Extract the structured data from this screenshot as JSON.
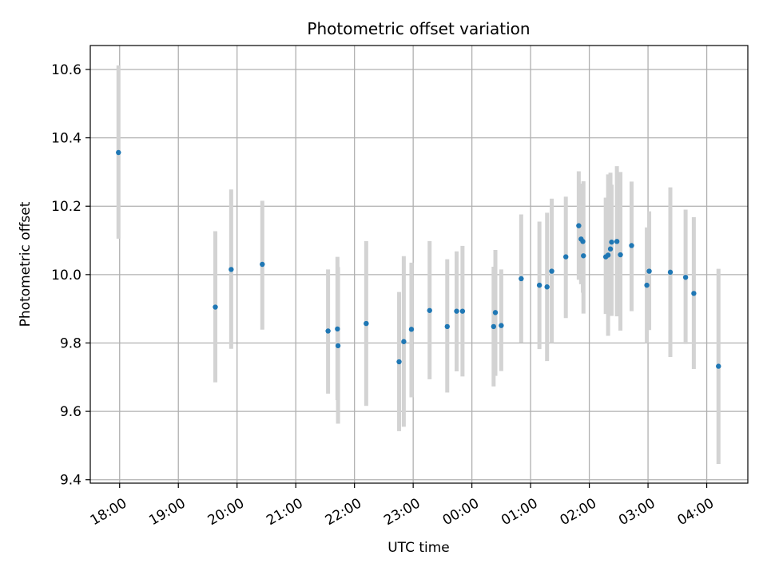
{
  "chart_data": {
    "type": "scatter",
    "title": "Photometric offset variation",
    "xlabel": "UTC time",
    "ylabel": "Photometric offset",
    "x_unit": "hours since 18:00 UTC",
    "xlim": [
      -0.5,
      10.7
    ],
    "ylim": [
      9.39,
      10.67
    ],
    "grid": true,
    "x_ticks": [
      {
        "value": 0,
        "label": "18:00"
      },
      {
        "value": 1,
        "label": "19:00"
      },
      {
        "value": 2,
        "label": "20:00"
      },
      {
        "value": 3,
        "label": "21:00"
      },
      {
        "value": 4,
        "label": "22:00"
      },
      {
        "value": 5,
        "label": "23:00"
      },
      {
        "value": 6,
        "label": "00:00"
      },
      {
        "value": 7,
        "label": "01:00"
      },
      {
        "value": 8,
        "label": "02:00"
      },
      {
        "value": 9,
        "label": "03:00"
      },
      {
        "value": 10,
        "label": "04:00"
      }
    ],
    "y_ticks": [
      {
        "value": 9.4,
        "label": "9.4"
      },
      {
        "value": 9.6,
        "label": "9.6"
      },
      {
        "value": 9.8,
        "label": "9.8"
      },
      {
        "value": 10.0,
        "label": "10.0"
      },
      {
        "value": 10.2,
        "label": "10.2"
      },
      {
        "value": 10.4,
        "label": "10.4"
      },
      {
        "value": 10.6,
        "label": "10.6"
      }
    ],
    "point_color": "#1f77b4",
    "errorbar_color": "#d3d3d3",
    "points": [
      {
        "x": -0.02,
        "y": 10.357,
        "lo": 10.105,
        "hi": 10.612
      },
      {
        "x": 1.63,
        "y": 9.905,
        "lo": 9.685,
        "hi": 10.127
      },
      {
        "x": 1.9,
        "y": 10.015,
        "lo": 9.783,
        "hi": 10.249
      },
      {
        "x": 2.43,
        "y": 10.03,
        "lo": 9.839,
        "hi": 10.216
      },
      {
        "x": 3.55,
        "y": 9.835,
        "lo": 9.652,
        "hi": 10.015
      },
      {
        "x": 3.71,
        "y": 9.841,
        "lo": 9.633,
        "hi": 10.052
      },
      {
        "x": 3.72,
        "y": 9.792,
        "lo": 9.564,
        "hi": 10.022
      },
      {
        "x": 4.2,
        "y": 9.857,
        "lo": 9.616,
        "hi": 10.098
      },
      {
        "x": 4.76,
        "y": 9.745,
        "lo": 9.542,
        "hi": 9.949
      },
      {
        "x": 4.84,
        "y": 9.804,
        "lo": 9.555,
        "hi": 10.054
      },
      {
        "x": 4.97,
        "y": 9.84,
        "lo": 9.641,
        "hi": 10.035
      },
      {
        "x": 5.28,
        "y": 9.895,
        "lo": 9.694,
        "hi": 10.098
      },
      {
        "x": 5.58,
        "y": 9.848,
        "lo": 9.655,
        "hi": 10.045
      },
      {
        "x": 5.74,
        "y": 9.893,
        "lo": 9.717,
        "hi": 10.068
      },
      {
        "x": 5.84,
        "y": 9.893,
        "lo": 9.702,
        "hi": 10.084
      },
      {
        "x": 6.37,
        "y": 9.848,
        "lo": 9.673,
        "hi": 10.023
      },
      {
        "x": 6.4,
        "y": 9.889,
        "lo": 9.704,
        "hi": 10.072
      },
      {
        "x": 6.5,
        "y": 9.851,
        "lo": 9.718,
        "hi": 10.015
      },
      {
        "x": 6.84,
        "y": 9.988,
        "lo": 9.801,
        "hi": 10.176
      },
      {
        "x": 7.15,
        "y": 9.969,
        "lo": 9.782,
        "hi": 10.155
      },
      {
        "x": 7.28,
        "y": 9.964,
        "lo": 9.747,
        "hi": 10.181
      },
      {
        "x": 7.36,
        "y": 10.01,
        "lo": 9.8,
        "hi": 10.222
      },
      {
        "x": 7.6,
        "y": 10.052,
        "lo": 9.873,
        "hi": 10.228
      },
      {
        "x": 7.82,
        "y": 10.143,
        "lo": 9.985,
        "hi": 10.302
      },
      {
        "x": 7.86,
        "y": 10.104,
        "lo": 9.972,
        "hi": 10.266
      },
      {
        "x": 7.89,
        "y": 10.097,
        "lo": 9.947,
        "hi": 10.249
      },
      {
        "x": 7.9,
        "y": 10.055,
        "lo": 9.886,
        "hi": 10.273
      },
      {
        "x": 8.28,
        "y": 10.052,
        "lo": 9.885,
        "hi": 10.225
      },
      {
        "x": 8.32,
        "y": 10.057,
        "lo": 9.821,
        "hi": 10.293
      },
      {
        "x": 8.36,
        "y": 10.075,
        "lo": 9.888,
        "hi": 10.298
      },
      {
        "x": 8.38,
        "y": 10.095,
        "lo": 9.879,
        "hi": 10.263
      },
      {
        "x": 8.47,
        "y": 10.097,
        "lo": 9.878,
        "hi": 10.317
      },
      {
        "x": 8.53,
        "y": 10.058,
        "lo": 9.836,
        "hi": 10.3
      },
      {
        "x": 8.72,
        "y": 10.085,
        "lo": 9.893,
        "hi": 10.272
      },
      {
        "x": 8.98,
        "y": 9.969,
        "lo": 9.8,
        "hi": 10.138
      },
      {
        "x": 9.02,
        "y": 10.01,
        "lo": 9.838,
        "hi": 10.185
      },
      {
        "x": 9.38,
        "y": 10.007,
        "lo": 9.759,
        "hi": 10.255
      },
      {
        "x": 9.64,
        "y": 9.992,
        "lo": 9.797,
        "hi": 10.19
      },
      {
        "x": 9.78,
        "y": 9.945,
        "lo": 9.724,
        "hi": 10.168
      },
      {
        "x": 10.2,
        "y": 9.732,
        "lo": 9.446,
        "hi": 10.017
      }
    ]
  }
}
